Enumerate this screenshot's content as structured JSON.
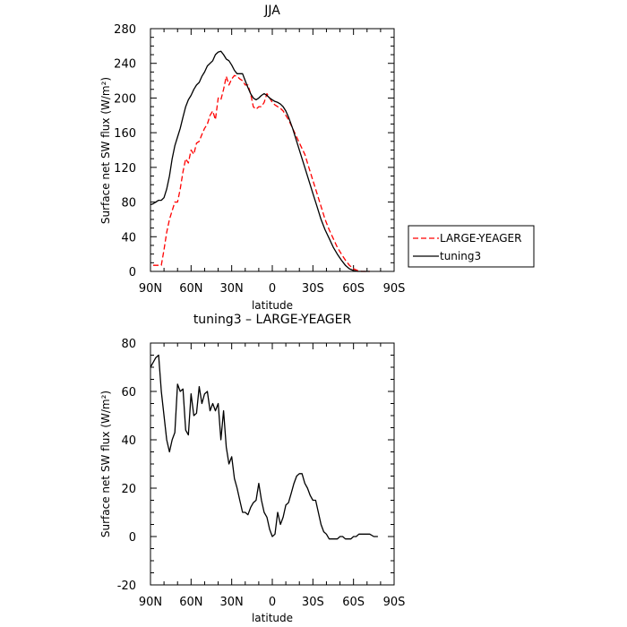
{
  "chart_data": [
    {
      "type": "line",
      "title": "JJA",
      "xlabel": "latitude",
      "ylabel": "Surface net SW flux (W/m²)",
      "xlim": [
        90,
        -90
      ],
      "ylim": [
        0,
        280
      ],
      "x_ticks": [
        90,
        60,
        30,
        0,
        -30,
        -60,
        -90
      ],
      "x_tick_labels": [
        "90N",
        "60N",
        "30N",
        "0",
        "30S",
        "60S",
        "90S"
      ],
      "y_ticks": [
        0,
        40,
        80,
        120,
        160,
        200,
        240,
        280
      ],
      "y_tick_labels": [
        "0",
        "40",
        "80",
        "120",
        "160",
        "200",
        "240",
        "280"
      ],
      "legend_position": "right",
      "series": [
        {
          "name": "LARGE-YEAGER",
          "color": "#ff0000",
          "dash": true,
          "x": [
            88,
            85,
            82,
            80,
            78,
            76,
            74,
            72,
            70,
            68,
            66,
            64,
            62,
            60,
            58,
            56,
            54,
            52,
            50,
            48,
            46,
            44,
            42,
            40,
            38,
            36,
            34,
            32,
            30,
            28,
            26,
            24,
            22,
            20,
            18,
            16,
            14,
            12,
            10,
            8,
            6,
            4,
            2,
            0,
            -2,
            -4,
            -6,
            -8,
            -10,
            -12,
            -15,
            -18,
            -21,
            -24,
            -27,
            -30,
            -33,
            -36,
            -39,
            -42,
            -45,
            -48,
            -51,
            -54,
            -57,
            -60,
            -63,
            -66,
            -68,
            -70,
            -72
          ],
          "values": [
            7,
            7,
            7,
            25,
            45,
            60,
            70,
            80,
            80,
            95,
            115,
            130,
            125,
            140,
            135,
            148,
            150,
            158,
            165,
            170,
            180,
            185,
            175,
            200,
            198,
            210,
            225,
            215,
            222,
            226,
            225,
            222,
            220,
            215,
            215,
            205,
            190,
            187,
            190,
            190,
            195,
            205,
            200,
            195,
            192,
            190,
            188,
            185,
            180,
            175,
            165,
            155,
            145,
            135,
            120,
            105,
            90,
            75,
            60,
            48,
            38,
            28,
            20,
            13,
            7,
            3,
            1,
            0,
            0,
            0,
            0
          ]
        },
        {
          "name": "tuning3",
          "color": "#000000",
          "dash": false,
          "x": [
            90,
            88,
            86,
            84,
            82,
            80,
            78,
            76,
            74,
            72,
            70,
            68,
            66,
            64,
            62,
            60,
            58,
            56,
            54,
            52,
            50,
            48,
            46,
            44,
            42,
            40,
            38,
            36,
            34,
            32,
            30,
            28,
            26,
            24,
            22,
            20,
            18,
            16,
            14,
            12,
            10,
            8,
            6,
            4,
            2,
            0,
            -2,
            -4,
            -6,
            -8,
            -10,
            -12,
            -15,
            -18,
            -21,
            -24,
            -27,
            -30,
            -33,
            -36,
            -39,
            -42,
            -45,
            -48,
            -51,
            -54,
            -57,
            -60,
            -63,
            -66,
            -68,
            -70,
            -72
          ],
          "values": [
            77,
            78,
            80,
            82,
            82,
            85,
            95,
            110,
            130,
            145,
            155,
            165,
            178,
            190,
            198,
            203,
            210,
            215,
            218,
            225,
            230,
            237,
            240,
            243,
            250,
            253,
            254,
            250,
            245,
            243,
            238,
            232,
            228,
            228,
            228,
            220,
            212,
            205,
            200,
            198,
            200,
            203,
            205,
            203,
            200,
            198,
            196,
            195,
            193,
            190,
            185,
            178,
            165,
            150,
            135,
            120,
            105,
            90,
            75,
            60,
            48,
            38,
            28,
            20,
            13,
            7,
            3,
            1,
            0,
            0,
            0,
            0,
            0
          ]
        }
      ]
    },
    {
      "type": "line",
      "title": "tuning3 – LARGE-YEAGER",
      "xlabel": "latitude",
      "ylabel": "Surface net SW flux (W/m²)",
      "xlim": [
        90,
        -90
      ],
      "ylim": [
        -20,
        80
      ],
      "x_ticks": [
        90,
        60,
        30,
        0,
        -30,
        -60,
        -90
      ],
      "x_tick_labels": [
        "90N",
        "60N",
        "30N",
        "0",
        "30S",
        "60S",
        "90S"
      ],
      "y_ticks": [
        -20,
        0,
        20,
        40,
        60,
        80
      ],
      "y_tick_labels": [
        "-20",
        "0",
        "20",
        "40",
        "60",
        "80"
      ],
      "series": [
        {
          "name": "tuning3 – LARGE-YEAGER",
          "color": "#000000",
          "dash": false,
          "x": [
            90,
            88,
            86,
            84,
            82,
            80,
            78,
            76,
            74,
            72,
            70,
            68,
            66,
            64,
            62,
            60,
            58,
            56,
            54,
            52,
            50,
            48,
            46,
            44,
            42,
            40,
            38,
            36,
            34,
            32,
            30,
            28,
            26,
            24,
            22,
            20,
            18,
            16,
            14,
            12,
            10,
            8,
            6,
            4,
            2,
            0,
            -2,
            -4,
            -6,
            -8,
            -10,
            -12,
            -14,
            -16,
            -18,
            -20,
            -22,
            -24,
            -26,
            -28,
            -30,
            -32,
            -34,
            -36,
            -38,
            -40,
            -42,
            -44,
            -46,
            -48,
            -50,
            -52,
            -54,
            -56,
            -58,
            -60,
            -62,
            -64,
            -66,
            -68,
            -70,
            -72,
            -75,
            -78
          ],
          "values": [
            70,
            72,
            74,
            75,
            60,
            50,
            40,
            35,
            40,
            43,
            63,
            60,
            61,
            44,
            42,
            59,
            50,
            51,
            62,
            55,
            59,
            60,
            52,
            55,
            52,
            55,
            40,
            52,
            37,
            30,
            33,
            24,
            20,
            15,
            10,
            10,
            9,
            12,
            14,
            15,
            22,
            15,
            10,
            8,
            3,
            0,
            1,
            10,
            5,
            8,
            13,
            14,
            18,
            22,
            25,
            26,
            26,
            22,
            20,
            17,
            15,
            15,
            10,
            5,
            2,
            1,
            -1,
            -1,
            -1,
            -1,
            0,
            0,
            -1,
            -1,
            -1,
            0,
            0,
            1,
            1,
            1,
            1,
            1,
            0,
            0
          ]
        }
      ]
    }
  ]
}
